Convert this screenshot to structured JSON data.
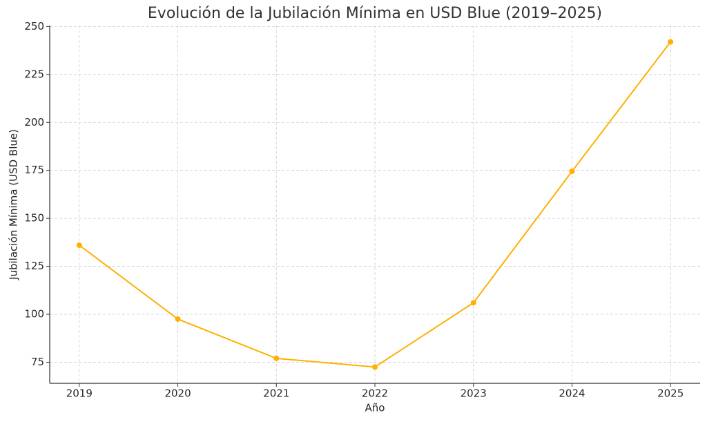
{
  "chart_data": {
    "type": "line",
    "title": "Evolución de la Jubilación Mínima en USD Blue (2019–2025)",
    "x_label": "Año",
    "y_label": "Jubilación Mínima (USD Blue)",
    "x": [
      2019,
      2020,
      2021,
      2022,
      2023,
      2024,
      2025
    ],
    "series": [
      {
        "name": "Jubilación Mínima (USD Blue)",
        "color": "#ffb000",
        "values": [
          136,
          97.5,
          77,
          72.5,
          106,
          174.5,
          242
        ]
      }
    ],
    "xlim": [
      2018.7,
      2025.3
    ],
    "xticks": [
      2019,
      2020,
      2021,
      2022,
      2023,
      2024,
      2025
    ],
    "ylim": [
      64,
      250.5
    ],
    "yticks": [
      75,
      100,
      125,
      150,
      175,
      200,
      225,
      250
    ],
    "grid": true
  }
}
